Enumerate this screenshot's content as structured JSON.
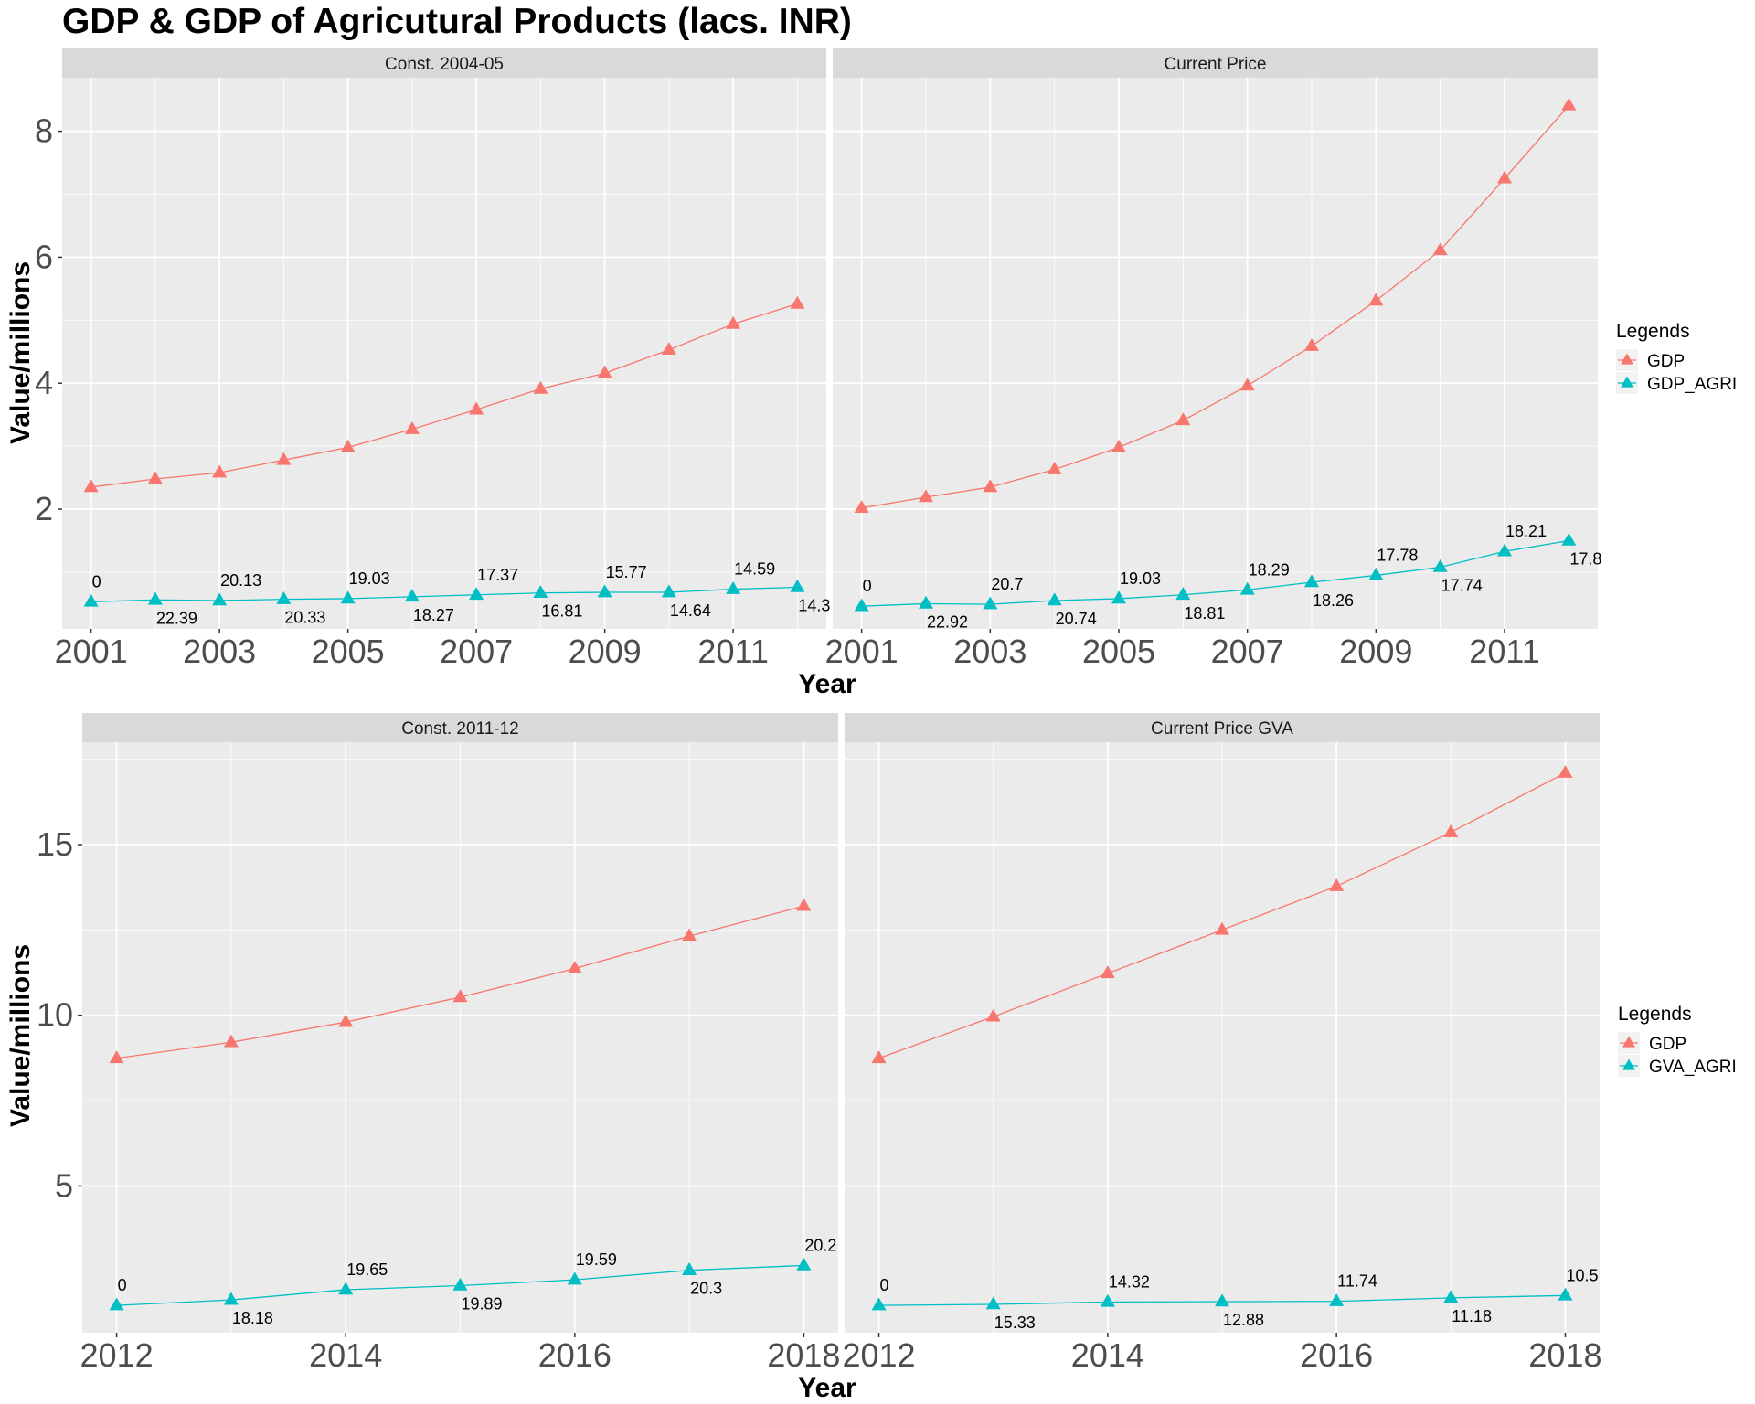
{
  "page": {
    "title": "GDP & GDP of Agricutural Products (lacs. INR)"
  },
  "colors": {
    "gdp": "#F8766D",
    "agri": "#00BFC4",
    "panel": "#EBEBEB",
    "strip": "#D9D9D9",
    "grid": "#FFFFFF"
  },
  "chart_data": [
    {
      "type": "line",
      "xlabel": "Year",
      "ylabel": "Value/millions",
      "ylim": [
        0.1,
        8.85
      ],
      "y_ticks": [
        2,
        4,
        6,
        8
      ],
      "x_ticks": [
        2001,
        2003,
        2005,
        2007,
        2009,
        2011
      ],
      "xlim": [
        2000.55,
        2012.45
      ],
      "legend": {
        "title": "Legends",
        "position": "right",
        "entries": [
          "GDP",
          "GDP_AGRI"
        ]
      },
      "panels": [
        {
          "strip": "Const. 2004-05",
          "x": [
            2001,
            2002,
            2003,
            2004,
            2005,
            2006,
            2007,
            2008,
            2009,
            2010,
            2011,
            2012
          ],
          "series": [
            {
              "name": "GDP",
              "values": [
                2.35,
                2.48,
                2.58,
                2.78,
                2.98,
                3.27,
                3.58,
                3.91,
                4.16,
                4.53,
                4.94,
                5.26
              ]
            },
            {
              "name": "GDP_AGRI",
              "values": [
                0.53,
                0.56,
                0.55,
                0.57,
                0.58,
                0.61,
                0.64,
                0.67,
                0.68,
                0.68,
                0.73,
                0.76
              ],
              "labels": [
                "0",
                "22.39",
                "20.13",
                "20.33",
                "19.03",
                "18.27",
                "17.37",
                "16.81",
                "15.77",
                "14.64",
                "14.59",
                "14.3"
              ]
            }
          ]
        },
        {
          "strip": "Current Price",
          "x": [
            2001,
            2002,
            2003,
            2004,
            2005,
            2006,
            2007,
            2008,
            2009,
            2010,
            2011,
            2012
          ],
          "series": [
            {
              "name": "GDP",
              "values": [
                2.02,
                2.19,
                2.35,
                2.63,
                2.98,
                3.41,
                3.96,
                4.59,
                5.31,
                6.11,
                7.25,
                8.41
              ]
            },
            {
              "name": "GDP_AGRI",
              "values": [
                0.46,
                0.5,
                0.49,
                0.55,
                0.58,
                0.64,
                0.72,
                0.84,
                0.95,
                1.08,
                1.33,
                1.5
              ],
              "labels": [
                "0",
                "22.92",
                "20.7",
                "20.74",
                "19.03",
                "18.81",
                "18.29",
                "18.26",
                "17.78",
                "17.74",
                "18.21",
                "17.8"
              ]
            }
          ]
        }
      ]
    },
    {
      "type": "line",
      "xlabel": "Year",
      "ylabel": "Value/millions",
      "ylim": [
        0.7,
        18
      ],
      "y_ticks": [
        5,
        10,
        15
      ],
      "x_ticks": [
        2012,
        2014,
        2016,
        2018
      ],
      "xlim": [
        2011.7,
        2018.3
      ],
      "legend": {
        "title": "Legends",
        "position": "right",
        "entries": [
          "GDP",
          "GVA_AGRI"
        ]
      },
      "panels": [
        {
          "strip": "Const. 2011-12",
          "x": [
            2012,
            2013,
            2014,
            2015,
            2016,
            2017,
            2018
          ],
          "series": [
            {
              "name": "GDP",
              "values": [
                8.74,
                9.21,
                9.8,
                10.53,
                11.37,
                12.32,
                13.2
              ]
            },
            {
              "name": "GVA_AGRI",
              "values": [
                1.5,
                1.66,
                1.96,
                2.08,
                2.25,
                2.53,
                2.67
              ],
              "labels": [
                "0",
                "18.18",
                "19.65",
                "19.89",
                "19.59",
                "20.3",
                "20.2"
              ]
            }
          ]
        },
        {
          "strip": "Current Price GVA",
          "x": [
            2012,
            2013,
            2014,
            2015,
            2016,
            2017,
            2018
          ],
          "series": [
            {
              "name": "GDP",
              "values": [
                8.74,
                9.96,
                11.23,
                12.5,
                13.78,
                15.36,
                17.1
              ]
            },
            {
              "name": "GVA_AGRI",
              "values": [
                1.5,
                1.53,
                1.6,
                1.61,
                1.62,
                1.72,
                1.79
              ],
              "labels": [
                "0",
                "15.33",
                "14.32",
                "12.88",
                "11.74",
                "11.18",
                "10.5"
              ]
            }
          ]
        }
      ]
    }
  ]
}
